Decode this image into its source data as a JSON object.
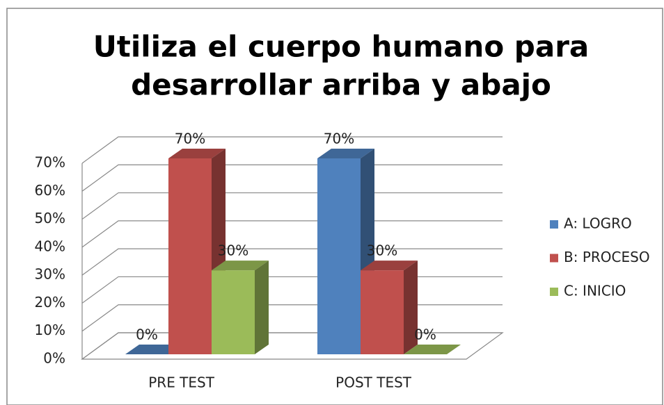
{
  "chart_data": {
    "type": "bar3d",
    "title": [
      "Utiliza el cuerpo humano para",
      "desarrollar arriba y abajo"
    ],
    "categories": [
      "PRE TEST",
      "POST TEST"
    ],
    "series": [
      {
        "name": "A: LOGRO",
        "color": "#4f81bd",
        "values": [
          0,
          70
        ],
        "value_labels": [
          "0%",
          "70%"
        ]
      },
      {
        "name": "B: PROCESO",
        "color": "#c0504d",
        "values": [
          70,
          30
        ],
        "value_labels": [
          "70%",
          "30%"
        ]
      },
      {
        "name": "C: INICIO",
        "color": "#9bbb59",
        "values": [
          30,
          0
        ],
        "value_labels": [
          "30%",
          "0%"
        ]
      }
    ],
    "ylim": [
      0,
      70
    ],
    "yticks": [
      {
        "value": 0,
        "label": "0%"
      },
      {
        "value": 10,
        "label": "10%"
      },
      {
        "value": 20,
        "label": "20%"
      },
      {
        "value": 30,
        "label": "30%"
      },
      {
        "value": 40,
        "label": "40%"
      },
      {
        "value": 50,
        "label": "50%"
      },
      {
        "value": 60,
        "label": "60%"
      },
      {
        "value": 70,
        "label": "70%"
      }
    ],
    "grid": true,
    "legend": "right"
  }
}
